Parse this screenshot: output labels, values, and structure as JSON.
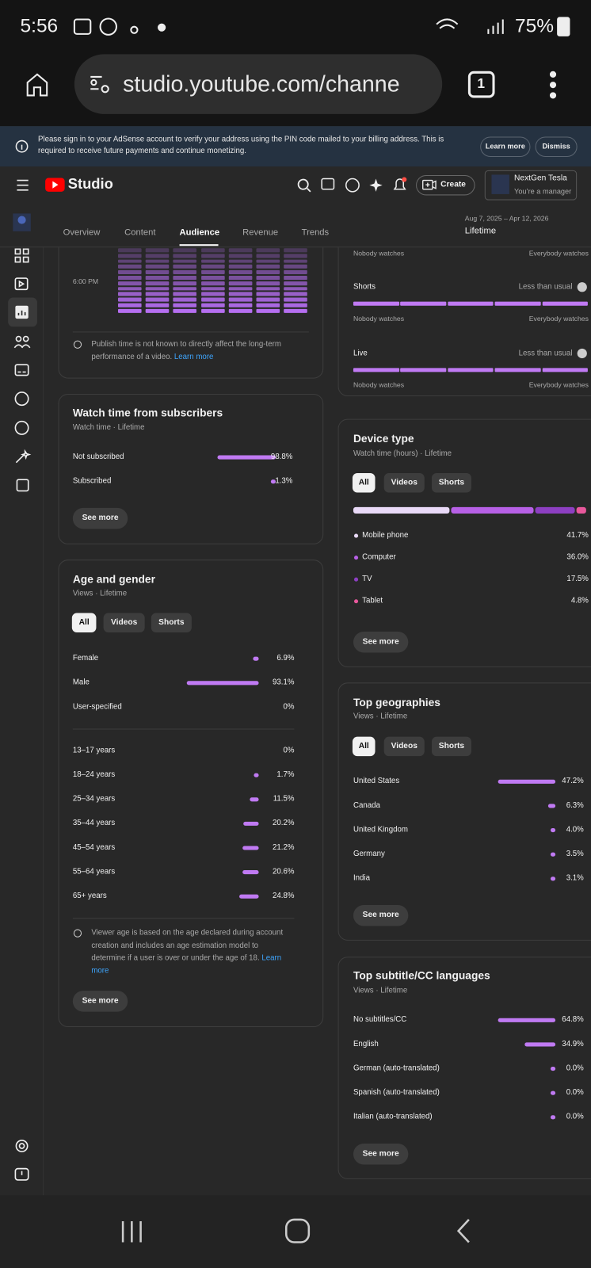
{
  "status_bar": {
    "time": "5:56",
    "battery": "75%"
  },
  "browser": {
    "url": "studio.youtube.com/channe",
    "tab_count": "1"
  },
  "banner": {
    "message": "Please sign in to your AdSense account to verify your address using the PIN code mailed to your billing address. This is required to receive future payments and continue monetizing.",
    "learn_more": "Learn more",
    "dismiss": "Dismiss"
  },
  "header": {
    "logo": "Studio",
    "create": "Create",
    "account_name": "NextGen Tesla",
    "account_role": "You’re a manager"
  },
  "tabs": {
    "items": [
      "Overview",
      "Content",
      "Audience",
      "Revenue",
      "Trends"
    ],
    "active": 2
  },
  "date_range": {
    "range": "Aug 7, 2025 – Apr 12, 2026",
    "period": "Lifetime"
  },
  "publish_time": {
    "time_label": "6:00 PM",
    "note": "Publish time is not known to directly affect the long-term performance of a video.",
    "link": "Learn more"
  },
  "subscribers": {
    "title": "Watch time from subscribers",
    "subtitle": "Watch time · Lifetime",
    "rows": [
      {
        "label": "Not subscribed",
        "value": 98.8,
        "value_label": "98.8%"
      },
      {
        "label": "Subscribed",
        "value": 1.3,
        "value_label": "1.3%"
      }
    ],
    "see_more": "See more"
  },
  "age_gender": {
    "title": "Age and gender",
    "subtitle": "Views · Lifetime",
    "filters": [
      "All",
      "Videos",
      "Shorts"
    ],
    "gender": [
      {
        "label": "Female",
        "value": 6.9,
        "value_label": "6.9%"
      },
      {
        "label": "Male",
        "value": 93.1,
        "value_label": "93.1%"
      },
      {
        "label": "User-specified",
        "value": 0,
        "value_label": "0%"
      }
    ],
    "age": [
      {
        "label": "13–17 years",
        "value": 0,
        "value_label": "0%"
      },
      {
        "label": "18–24 years",
        "value": 1.7,
        "value_label": "1.7%"
      },
      {
        "label": "25–34 years",
        "value": 11.5,
        "value_label": "11.5%"
      },
      {
        "label": "35–44 years",
        "value": 20.2,
        "value_label": "20.2%"
      },
      {
        "label": "45–54 years",
        "value": 21.2,
        "value_label": "21.2%"
      },
      {
        "label": "55–64 years",
        "value": 20.6,
        "value_label": "20.6%"
      },
      {
        "label": "65+ years",
        "value": 24.8,
        "value_label": "24.8%"
      }
    ],
    "note": "Viewer age is based on the age declared during account creation and includes an age estimation model to determine if a user is over or under the age of 18.",
    "link": "Learn more",
    "see_more": "See more"
  },
  "formats": {
    "scale_low": "Nobody watches",
    "scale_high": "Everybody watches",
    "rows": [
      {
        "label": "Shorts",
        "status": "Less than usual"
      },
      {
        "label": "Live",
        "status": "Less than usual"
      }
    ]
  },
  "device": {
    "title": "Device type",
    "subtitle": "Watch time (hours) · Lifetime",
    "filters": [
      "All",
      "Videos",
      "Shorts"
    ],
    "rows": [
      {
        "label": "Mobile phone",
        "value": 41.7,
        "value_label": "41.7%",
        "color": "#e9d9f7"
      },
      {
        "label": "Computer",
        "value": 36.0,
        "value_label": "36.0%",
        "color": "#b760e6"
      },
      {
        "label": "TV",
        "value": 17.5,
        "value_label": "17.5%",
        "color": "#8d3fc2"
      },
      {
        "label": "Tablet",
        "value": 4.8,
        "value_label": "4.8%",
        "color": "#e8589c"
      }
    ],
    "see_more": "See more"
  },
  "geographies": {
    "title": "Top geographies",
    "subtitle": "Views · Lifetime",
    "filters": [
      "All",
      "Videos",
      "Shorts"
    ],
    "rows": [
      {
        "label": "United States",
        "value": 47.2,
        "value_label": "47.2%"
      },
      {
        "label": "Canada",
        "value": 6.3,
        "value_label": "6.3%"
      },
      {
        "label": "United Kingdom",
        "value": 4.0,
        "value_label": "4.0%"
      },
      {
        "label": "Germany",
        "value": 3.5,
        "value_label": "3.5%"
      },
      {
        "label": "India",
        "value": 3.1,
        "value_label": "3.1%"
      }
    ],
    "see_more": "See more"
  },
  "subtitles": {
    "title": "Top subtitle/CC languages",
    "subtitle": "Views · Lifetime",
    "rows": [
      {
        "label": "No subtitles/CC",
        "value": 64.8,
        "value_label": "64.8%"
      },
      {
        "label": "English",
        "value": 34.9,
        "value_label": "34.9%"
      },
      {
        "label": "German (auto-translated)",
        "value": 0.0,
        "value_label": "0.0%"
      },
      {
        "label": "Spanish (auto-translated)",
        "value": 0.0,
        "value_label": "0.0%"
      },
      {
        "label": "Italian (auto-translated)",
        "value": 0.0,
        "value_label": "0.0%"
      }
    ],
    "see_more": "See more"
  }
}
